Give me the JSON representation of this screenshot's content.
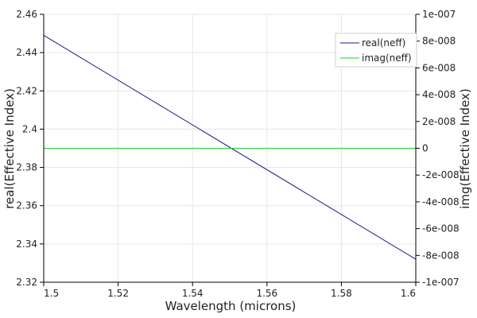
{
  "chart_data": {
    "type": "line",
    "title": "",
    "xlabel": "Wavelength (microns)",
    "ylabel_left": "real(Effective Index)",
    "ylabel_right": "img(Effective Index)",
    "xlim": [
      1.5,
      1.6
    ],
    "ylim_left": [
      2.32,
      2.46
    ],
    "ylim_right": [
      -1e-07,
      1e-07
    ],
    "x_ticks": [
      "1.5",
      "1.52",
      "1.54",
      "1.56",
      "1.58",
      "1.6"
    ],
    "y_left_ticks": [
      "2.32",
      "2.34",
      "2.36",
      "2.38",
      "2.4",
      "2.42",
      "2.44",
      "2.46"
    ],
    "y_right_ticks": [
      "-1e-007",
      "-8e-008",
      "-6e-008",
      "-4e-008",
      "-2e-008",
      "0",
      "2e-008",
      "4e-008",
      "6e-008",
      "8e-008",
      "1e-007"
    ],
    "grid": true,
    "legend_position": "top-right",
    "series": [
      {
        "name": "real(neff)",
        "axis": "left",
        "color": "#1a1a8c",
        "x": [
          1.5,
          1.6
        ],
        "y": [
          2.449,
          2.332
        ]
      },
      {
        "name": "imag(neff)",
        "axis": "right",
        "color": "#22cc22",
        "x": [
          1.5,
          1.6
        ],
        "y": [
          0,
          0
        ]
      }
    ]
  }
}
